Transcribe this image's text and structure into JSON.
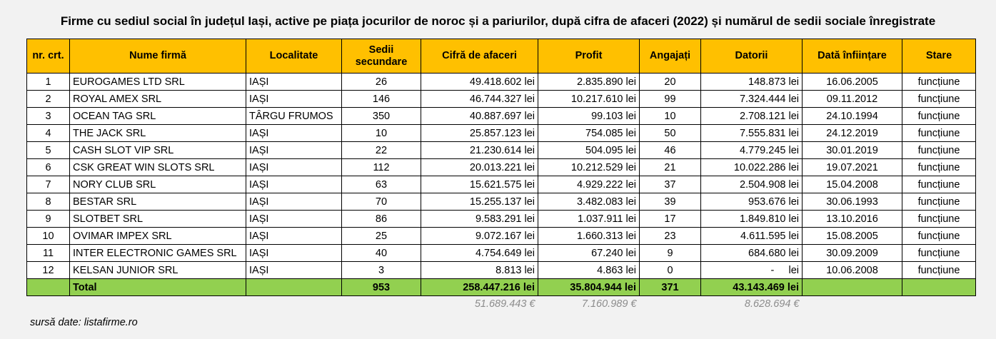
{
  "title": "Firme cu sediul social în județul Iași, active pe piața jocurilor de noroc și a pariurilor, după cifra de afaceri (2022) și numărul de sedii sociale înregistrate",
  "headers": {
    "nr": "nr. crt.",
    "nume": "Nume firmă",
    "localitate": "Localitate",
    "sedii_1": "Sedii",
    "sedii_2": "secundare",
    "cifra": "Cifră de afaceri",
    "profit": "Profit",
    "angajati": "Angajați",
    "datorii": "Datorii",
    "data": "Dată înființare",
    "stare": "Stare"
  },
  "rows": [
    {
      "nr": "1",
      "nume": "EUROGAMES LTD SRL",
      "localitate": "IAȘI",
      "sedii": "26",
      "cifra": "49.418.602 lei",
      "profit": "2.835.890 lei",
      "angajati": "20",
      "datorii": "148.873 lei",
      "data": "16.06.2005",
      "stare": "funcțiune"
    },
    {
      "nr": "2",
      "nume": "ROYAL AMEX SRL",
      "localitate": "IAȘI",
      "sedii": "146",
      "cifra": "46.744.327 lei",
      "profit": "10.217.610 lei",
      "angajati": "99",
      "datorii": "7.324.444 lei",
      "data": "09.11.2012",
      "stare": "funcțiune"
    },
    {
      "nr": "3",
      "nume": "OCEAN TAG SRL",
      "localitate": "TÂRGU FRUMOS",
      "sedii": "350",
      "cifra": "40.887.697 lei",
      "profit": "99.103 lei",
      "angajati": "10",
      "datorii": "2.708.121 lei",
      "data": "24.10.1994",
      "stare": "funcțiune"
    },
    {
      "nr": "4",
      "nume": "THE JACK SRL",
      "localitate": "IAȘI",
      "sedii": "10",
      "cifra": "25.857.123 lei",
      "profit": "754.085 lei",
      "angajati": "50",
      "datorii": "7.555.831 lei",
      "data": "24.12.2019",
      "stare": "funcțiune"
    },
    {
      "nr": "5",
      "nume": "CASH SLOT VIP SRL",
      "localitate": "IAȘI",
      "sedii": "22",
      "cifra": "21.230.614 lei",
      "profit": "504.095 lei",
      "angajati": "46",
      "datorii": "4.779.245 lei",
      "data": "30.01.2019",
      "stare": "funcțiune"
    },
    {
      "nr": "6",
      "nume": "CSK GREAT WIN SLOTS SRL",
      "localitate": "IAȘI",
      "sedii": "112",
      "cifra": "20.013.221 lei",
      "profit": "10.212.529 lei",
      "angajati": "21",
      "datorii": "10.022.286 lei",
      "data": "19.07.2021",
      "stare": "funcțiune"
    },
    {
      "nr": "7",
      "nume": "NORY CLUB SRL",
      "localitate": "IAȘI",
      "sedii": "63",
      "cifra": "15.621.575 lei",
      "profit": "4.929.222 lei",
      "angajati": "37",
      "datorii": "2.504.908 lei",
      "data": "15.04.2008",
      "stare": "funcțiune"
    },
    {
      "nr": "8",
      "nume": "BESTAR SRL",
      "localitate": "IAȘI",
      "sedii": "70",
      "cifra": "15.255.137 lei",
      "profit": "3.482.083 lei",
      "angajati": "39",
      "datorii": "953.676 lei",
      "data": "30.06.1993",
      "stare": "funcțiune"
    },
    {
      "nr": "9",
      "nume": "SLOTBET SRL",
      "localitate": "IAȘI",
      "sedii": "86",
      "cifra": "9.583.291 lei",
      "profit": "1.037.911 lei",
      "angajati": "17",
      "datorii": "1.849.810 lei",
      "data": "13.10.2016",
      "stare": "funcțiune"
    },
    {
      "nr": "10",
      "nume": "OVIMAR IMPEX SRL",
      "localitate": "IAȘI",
      "sedii": "25",
      "cifra": "9.072.167 lei",
      "profit": "1.660.313 lei",
      "angajati": "23",
      "datorii": "4.611.595 lei",
      "data": "15.08.2005",
      "stare": "funcțiune"
    },
    {
      "nr": "11",
      "nume": "INTER ELECTRONIC GAMES SRL",
      "localitate": "IAȘI",
      "sedii": "40",
      "cifra": "4.754.649 lei",
      "profit": "67.240 lei",
      "angajati": "9",
      "datorii": "684.680 lei",
      "data": "30.09.2009",
      "stare": "funcțiune"
    },
    {
      "nr": "12",
      "nume": "KELSAN JUNIOR SRL",
      "localitate": "IAȘI",
      "sedii": "3",
      "cifra": "8.813 lei",
      "profit": "4.863 lei",
      "angajati": "0",
      "datorii": "-     lei",
      "data": "10.06.2008",
      "stare": "funcțiune"
    }
  ],
  "total": {
    "label": "Total",
    "sedii": "953",
    "cifra": "258.447.216 lei",
    "profit": "35.804.944 lei",
    "angajati": "371",
    "datorii": "43.143.469 lei"
  },
  "eur": {
    "cifra": "51.689.443 €",
    "profit": "7.160.989 €",
    "datorii": "8.628.694 €"
  },
  "source": "sursă date: listafirme.ro",
  "colors": {
    "header": "#ffc000",
    "total": "#92d050",
    "eur_text": "#8c8c8c"
  }
}
